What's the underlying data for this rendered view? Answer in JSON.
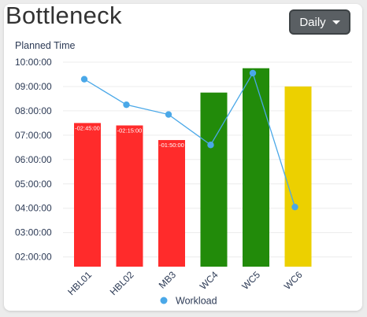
{
  "header": {
    "title": "Bottleneck",
    "period_select": "Daily"
  },
  "chart_data": {
    "type": "bar",
    "ylabel": "Planned Time",
    "y_ticks": [
      "02:00:00",
      "03:00:00",
      "04:00:00",
      "05:00:00",
      "06:00:00",
      "07:00:00",
      "08:00:00",
      "09:00:00",
      "10:00:00"
    ],
    "ylim_hours": [
      1.6,
      10.0
    ],
    "categories": [
      "HBL01",
      "HBL02",
      "MB3",
      "WC4",
      "WC5",
      "WC6"
    ],
    "bars": {
      "values_hours": [
        7.5,
        7.4,
        6.8,
        8.75,
        9.75,
        9.0
      ],
      "colors": [
        "#ff2b2b",
        "#ff2b2b",
        "#ff2b2b",
        "#228b0a",
        "#228b0a",
        "#ecd000"
      ],
      "labels": [
        "-02:45:00",
        "-02:15:00",
        "-01:50:00",
        "",
        "",
        ""
      ]
    },
    "series": [
      {
        "name": "Workload",
        "type": "line",
        "color": "#4aa8e8",
        "values_hours": [
          9.3,
          8.25,
          7.85,
          6.6,
          9.55,
          4.05
        ]
      }
    ],
    "legend": "bottom",
    "grid": true
  }
}
